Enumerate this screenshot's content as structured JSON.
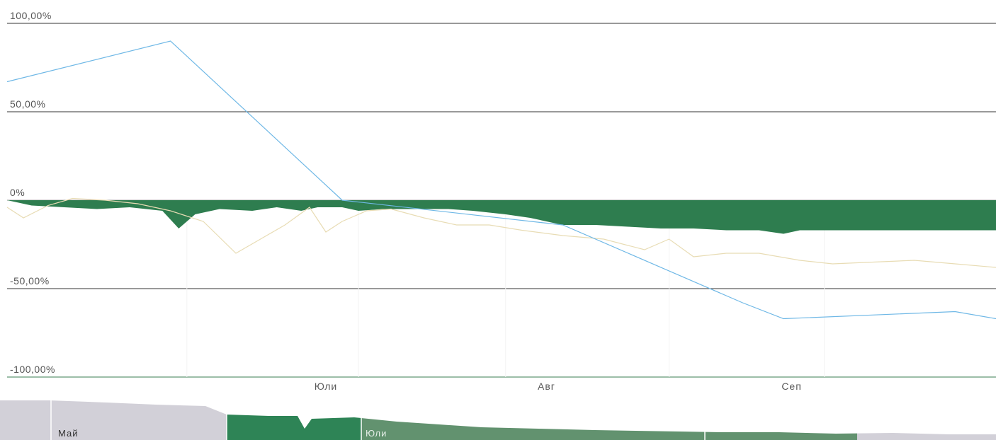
{
  "chart_data": {
    "type": "area",
    "y_axis": {
      "ticks": [
        100,
        50,
        0,
        -50,
        -100
      ],
      "tick_labels": [
        "100,00%",
        "50,00%",
        "0%",
        "-50,00%",
        "-100,00%"
      ],
      "ylim": [
        -100,
        100
      ]
    },
    "x_axis": {
      "tick_labels": [
        "Юли",
        "Авг",
        "Сеп"
      ],
      "xlim": [
        "2015-06-01",
        "2015-09-30"
      ]
    },
    "grid": true,
    "series": [
      {
        "color": "#2e7d4f",
        "style": "area",
        "points": [
          [
            "2015-06-01",
            0
          ],
          [
            "2015-06-04",
            -3
          ],
          [
            "2015-06-08",
            -4
          ],
          [
            "2015-06-12",
            -5
          ],
          [
            "2015-06-16",
            -4
          ],
          [
            "2015-06-20",
            -6
          ],
          [
            "2015-06-22",
            -16
          ],
          [
            "2015-06-24",
            -8
          ],
          [
            "2015-06-27",
            -5
          ],
          [
            "2015-07-01",
            -6
          ],
          [
            "2015-07-04",
            -4
          ],
          [
            "2015-07-07",
            -6
          ],
          [
            "2015-07-09",
            -4
          ],
          [
            "2015-07-12",
            -4
          ],
          [
            "2015-07-14",
            -6
          ],
          [
            "2015-07-17",
            -5
          ],
          [
            "2015-07-21",
            -5
          ],
          [
            "2015-07-25",
            -5
          ],
          [
            "2015-07-28",
            -6
          ],
          [
            "2015-08-01",
            -8
          ],
          [
            "2015-08-04",
            -10
          ],
          [
            "2015-08-08",
            -14
          ],
          [
            "2015-08-12",
            -14
          ],
          [
            "2015-08-16",
            -15
          ],
          [
            "2015-08-20",
            -16
          ],
          [
            "2015-08-24",
            -16
          ],
          [
            "2015-08-28",
            -17
          ],
          [
            "2015-09-01",
            -17
          ],
          [
            "2015-09-04",
            -19
          ],
          [
            "2015-09-06",
            -17
          ],
          [
            "2015-09-10",
            -17
          ],
          [
            "2015-09-14",
            -17
          ],
          [
            "2015-09-18",
            -17
          ],
          [
            "2015-09-22",
            -17
          ],
          [
            "2015-09-26",
            -17
          ],
          [
            "2015-09-30",
            -17
          ]
        ]
      },
      {
        "color": "#e8dcb4",
        "style": "line",
        "points": [
          [
            "2015-06-01",
            -4
          ],
          [
            "2015-06-03",
            -10
          ],
          [
            "2015-06-06",
            -3
          ],
          [
            "2015-06-09",
            1
          ],
          [
            "2015-06-13",
            0
          ],
          [
            "2015-06-17",
            -2
          ],
          [
            "2015-06-21",
            -6
          ],
          [
            "2015-06-25",
            -12
          ],
          [
            "2015-06-29",
            -30
          ],
          [
            "2015-07-02",
            -22
          ],
          [
            "2015-07-05",
            -14
          ],
          [
            "2015-07-08",
            -4
          ],
          [
            "2015-07-10",
            -18
          ],
          [
            "2015-07-12",
            -12
          ],
          [
            "2015-07-15",
            -6
          ],
          [
            "2015-07-18",
            -5
          ],
          [
            "2015-07-22",
            -10
          ],
          [
            "2015-07-26",
            -14
          ],
          [
            "2015-07-30",
            -14
          ],
          [
            "2015-08-03",
            -17
          ],
          [
            "2015-08-08",
            -20
          ],
          [
            "2015-08-13",
            -22
          ],
          [
            "2015-08-18",
            -28
          ],
          [
            "2015-08-21",
            -22
          ],
          [
            "2015-08-24",
            -32
          ],
          [
            "2015-08-28",
            -30
          ],
          [
            "2015-09-01",
            -30
          ],
          [
            "2015-09-06",
            -34
          ],
          [
            "2015-09-10",
            -36
          ],
          [
            "2015-09-15",
            -35
          ],
          [
            "2015-09-20",
            -34
          ],
          [
            "2015-09-25",
            -36
          ],
          [
            "2015-09-30",
            -38
          ]
        ]
      },
      {
        "color": "#6fb8e6",
        "style": "line",
        "points": [
          [
            "2015-06-01",
            67
          ],
          [
            "2015-06-21",
            90
          ],
          [
            "2015-07-12",
            0
          ],
          [
            "2015-08-08",
            -14
          ],
          [
            "2015-08-30",
            -58
          ],
          [
            "2015-09-04",
            -67
          ],
          [
            "2015-09-25",
            -63
          ],
          [
            "2015-09-30",
            -67
          ]
        ]
      }
    ],
    "navigator": {
      "labels": [
        "Май",
        "Юли"
      ]
    }
  }
}
